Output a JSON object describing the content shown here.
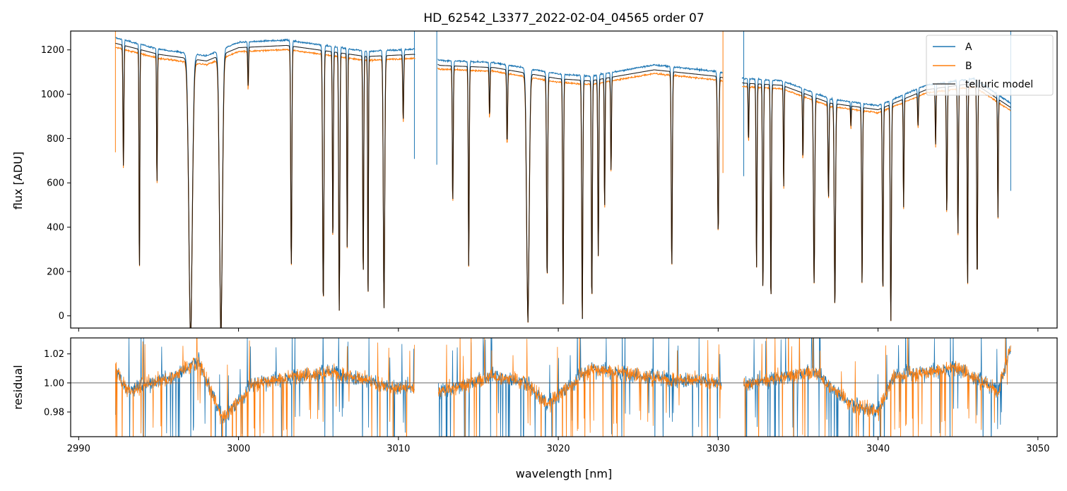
{
  "chart_data": [
    {
      "type": "line",
      "title": "HD_62542_L3377_2022-02-04_04565  order 07",
      "xlabel": "",
      "ylabel": "flux [ADU]",
      "xlim": [
        2989.5,
        3051.2
      ],
      "ylim": [
        -55,
        1285
      ],
      "y_ticks": [
        0,
        200,
        400,
        600,
        800,
        1000,
        1200
      ],
      "y_tick_labels": [
        "0",
        "200",
        "400",
        "600",
        "800",
        "1000",
        "1200"
      ],
      "legend": {
        "position": "top-right",
        "entries": [
          "A",
          "B",
          "telluric model"
        ]
      },
      "series": [
        {
          "name": "A",
          "color": "#1f77b4"
        },
        {
          "name": "B",
          "color": "#ff7f0e"
        },
        {
          "name": "telluric model",
          "color": "#000000"
        }
      ],
      "data_range_nm": [
        2992.3,
        3048.3
      ],
      "continuum_points": [
        [
          2992.3,
          1230
        ],
        [
          2995,
          1180
        ],
        [
          2998,
          1150
        ],
        [
          3000,
          1210
        ],
        [
          3003,
          1220
        ],
        [
          3006,
          1190
        ],
        [
          3008,
          1170
        ],
        [
          3011,
          1180
        ],
        [
          3012.6,
          1130
        ],
        [
          3016,
          1120
        ],
        [
          3020,
          1070
        ],
        [
          3022,
          1060
        ],
        [
          3026,
          1110
        ],
        [
          3030,
          1080
        ],
        [
          3031.6,
          1050
        ],
        [
          3034,
          1040
        ],
        [
          3037,
          960
        ],
        [
          3040,
          930
        ],
        [
          3043,
          1020
        ],
        [
          3046,
          1050
        ],
        [
          3048.3,
          940
        ]
      ],
      "gaps_nm": [
        [
          3011.05,
          3012.45
        ],
        [
          3030.3,
          3031.5
        ]
      ],
      "spike_lines": [
        {
          "x": 2992.3,
          "color": "#ff7f0e"
        },
        {
          "x": 3011.0,
          "color": "#1f77b4"
        },
        {
          "x": 3012.4,
          "color": "#1f77b4"
        },
        {
          "x": 3030.3,
          "color": "#ff7f0e"
        },
        {
          "x": 3031.6,
          "color": "#1f77b4"
        },
        {
          "x": 3048.3,
          "color": "#1f77b4"
        }
      ],
      "absorption_lines": [
        [
          2992.8,
          0.45,
          0.06
        ],
        [
          2993.8,
          0.85,
          0.05
        ],
        [
          2994.9,
          0.5,
          0.05
        ],
        [
          2997.0,
          1.05,
          0.22
        ],
        [
          2998.9,
          1.05,
          0.18
        ],
        [
          3000.6,
          0.15,
          0.05
        ],
        [
          3003.3,
          0.82,
          0.07
        ],
        [
          3005.3,
          0.95,
          0.08
        ],
        [
          3005.9,
          0.72,
          0.06
        ],
        [
          3006.3,
          0.98,
          0.07
        ],
        [
          3006.8,
          0.75,
          0.05
        ],
        [
          3007.8,
          0.85,
          0.06
        ],
        [
          3008.1,
          0.97,
          0.05
        ],
        [
          3009.1,
          0.97,
          0.09
        ],
        [
          3010.3,
          0.25,
          0.06
        ],
        [
          3013.4,
          0.55,
          0.06
        ],
        [
          3014.4,
          0.8,
          0.06
        ],
        [
          3015.7,
          0.2,
          0.05
        ],
        [
          3016.8,
          0.3,
          0.06
        ],
        [
          3018.1,
          1.0,
          0.16
        ],
        [
          3019.3,
          0.85,
          0.07
        ],
        [
          3020.3,
          0.95,
          0.06
        ],
        [
          3021.5,
          1.0,
          0.07
        ],
        [
          3022.1,
          0.95,
          0.06
        ],
        [
          3022.5,
          0.75,
          0.06
        ],
        [
          3022.9,
          0.55,
          0.05
        ],
        [
          3023.3,
          0.4,
          0.05
        ],
        [
          3027.1,
          0.8,
          0.07
        ],
        [
          3030.0,
          0.65,
          0.08
        ],
        [
          3031.9,
          0.25,
          0.05
        ],
        [
          3032.4,
          0.8,
          0.06
        ],
        [
          3032.8,
          0.9,
          0.06
        ],
        [
          3033.3,
          0.95,
          0.06
        ],
        [
          3034.1,
          0.45,
          0.05
        ],
        [
          3035.3,
          0.3,
          0.05
        ],
        [
          3036.0,
          0.85,
          0.08
        ],
        [
          3036.9,
          0.45,
          0.06
        ],
        [
          3037.3,
          0.95,
          0.08
        ],
        [
          3038.3,
          0.1,
          0.04
        ],
        [
          3039.0,
          0.85,
          0.06
        ],
        [
          3040.3,
          0.9,
          0.06
        ],
        [
          3040.8,
          1.0,
          0.07
        ],
        [
          3041.6,
          0.5,
          0.05
        ],
        [
          3042.5,
          0.15,
          0.05
        ],
        [
          3043.6,
          0.25,
          0.05
        ],
        [
          3044.3,
          0.55,
          0.06
        ],
        [
          3045.0,
          0.65,
          0.06
        ],
        [
          3045.6,
          0.9,
          0.05
        ],
        [
          3046.2,
          0.85,
          0.06
        ],
        [
          3047.5,
          0.55,
          0.05
        ]
      ]
    },
    {
      "type": "line",
      "title": "",
      "xlabel": "wavelength [nm]",
      "ylabel": "residual",
      "xlim": [
        2989.5,
        3051.2
      ],
      "ylim": [
        0.963,
        1.031
      ],
      "x_ticks": [
        2990,
        3000,
        3010,
        3020,
        3030,
        3040,
        3050
      ],
      "x_tick_labels": [
        "2990",
        "3000",
        "3010",
        "3020",
        "3030",
        "3040",
        "3050"
      ],
      "y_ticks": [
        0.98,
        1.0,
        1.02
      ],
      "y_tick_labels": [
        "0.98",
        "1.00",
        "1.02"
      ],
      "reference_line": 1.0,
      "series": [
        {
          "name": "A",
          "color": "#1f77b4"
        },
        {
          "name": "B",
          "color": "#ff7f0e"
        }
      ],
      "segments_nm": [
        [
          2992.3,
          3011.0
        ],
        [
          3012.5,
          3030.2
        ],
        [
          3031.6,
          3048.3
        ]
      ],
      "residual_trend": [
        [
          2992.3,
          1.01
        ],
        [
          2993,
          0.995
        ],
        [
          2996,
          1.005
        ],
        [
          2997.5,
          1.015
        ],
        [
          2999,
          0.975
        ],
        [
          3001,
          1.0
        ],
        [
          3006,
          1.008
        ],
        [
          3009,
          0.998
        ],
        [
          3013,
          0.995
        ],
        [
          3016,
          1.005
        ],
        [
          3018,
          1.0
        ],
        [
          3019.3,
          0.985
        ],
        [
          3022,
          1.01
        ],
        [
          3025,
          1.005
        ],
        [
          3030,
          1.0
        ],
        [
          3032,
          1.0
        ],
        [
          3036,
          1.008
        ],
        [
          3038.3,
          0.985
        ],
        [
          3040,
          0.98
        ],
        [
          3041,
          1.005
        ],
        [
          3045,
          1.01
        ],
        [
          3047.5,
          0.995
        ],
        [
          3048.3,
          1.025
        ]
      ]
    }
  ]
}
